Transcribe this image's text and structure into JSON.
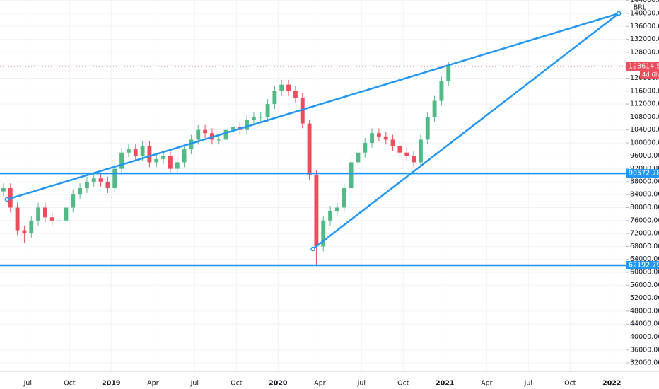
{
  "chart_data": {
    "type": "candlestick",
    "currency": "BRL",
    "up_color": "#53b987",
    "down_color": "#eb4d5c",
    "grid": true,
    "x": [
      "2018-05",
      "2018-05",
      "2018-06",
      "2018-06",
      "2018-07",
      "2018-07",
      "2018-08",
      "2018-08",
      "2018-09",
      "2018-09",
      "2018-10",
      "2018-10",
      "2018-11",
      "2018-11",
      "2018-12",
      "2018-12",
      "2019-01",
      "2019-01",
      "2019-02",
      "2019-02",
      "2019-03",
      "2019-03",
      "2019-04",
      "2019-04",
      "2019-05",
      "2019-05",
      "2019-06",
      "2019-06",
      "2019-07",
      "2019-07",
      "2019-08",
      "2019-08",
      "2019-09",
      "2019-09",
      "2019-10",
      "2019-10",
      "2019-11",
      "2019-11",
      "2019-12",
      "2019-12",
      "2020-01",
      "2020-01",
      "2020-02",
      "2020-02",
      "2020-03",
      "2020-03",
      "2020-04",
      "2020-04",
      "2020-05",
      "2020-05",
      "2020-06",
      "2020-06",
      "2020-07",
      "2020-07",
      "2020-08",
      "2020-08",
      "2020-09",
      "2020-09",
      "2020-10",
      "2020-10",
      "2020-11",
      "2020-11",
      "2020-12",
      "2020-12",
      "2021-01"
    ],
    "open": [
      85000,
      86000,
      80000,
      73000,
      72000,
      76000,
      80000,
      77000,
      76000,
      76000,
      80000,
      84000,
      86000,
      88000,
      89000,
      88000,
      86000,
      92000,
      97000,
      98000,
      96000,
      99000,
      94000,
      95000,
      96000,
      92000,
      94000,
      98000,
      101000,
      104000,
      103000,
      101000,
      101000,
      104000,
      105000,
      104000,
      107000,
      108000,
      108000,
      112000,
      116000,
      118000,
      116000,
      114000,
      106000,
      90000,
      68000,
      76000,
      79000,
      80000,
      86000,
      94000,
      97000,
      100000,
      103000,
      102000,
      101000,
      99000,
      97000,
      96000,
      94000,
      101000,
      108000,
      113000,
      119000
    ],
    "high": [
      87500,
      87500,
      81500,
      74500,
      77500,
      81500,
      81500,
      78500,
      77500,
      81500,
      85500,
      87500,
      89500,
      90500,
      90500,
      89500,
      93500,
      98500,
      99500,
      99500,
      100500,
      100500,
      96500,
      97500,
      97500,
      95500,
      99500,
      102500,
      105500,
      105500,
      104500,
      102500,
      105500,
      106500,
      106500,
      108500,
      109500,
      109500,
      113500,
      117500,
      119500,
      119500,
      117500,
      115500,
      107000,
      91500,
      77500,
      80500,
      81500,
      87500,
      95500,
      98500,
      101500,
      104500,
      104500,
      103500,
      102500,
      100500,
      98500,
      97500,
      102500,
      109500,
      114500,
      120500,
      125000
    ],
    "low": [
      83500,
      78500,
      71500,
      69000,
      70500,
      74500,
      75500,
      74500,
      74500,
      74500,
      78500,
      82500,
      84500,
      86500,
      86500,
      84500,
      84500,
      90500,
      95500,
      94500,
      94500,
      92500,
      92500,
      93500,
      90500,
      90500,
      92500,
      96500,
      99500,
      101500,
      99500,
      99500,
      99500,
      102500,
      102500,
      102500,
      105500,
      106500,
      106500,
      110500,
      114500,
      114500,
      112500,
      104500,
      88500,
      62200,
      66500,
      74500,
      77500,
      78500,
      84500,
      92500,
      95500,
      98500,
      100500,
      99500,
      97500,
      95500,
      94500,
      92500,
      92500,
      99500,
      106500,
      111500,
      117500
    ],
    "close": [
      86000,
      80000,
      73000,
      72000,
      76000,
      80000,
      77000,
      76000,
      76000,
      80000,
      84000,
      86000,
      88000,
      89000,
      88000,
      86000,
      92000,
      97000,
      98000,
      96000,
      99000,
      94000,
      95000,
      96000,
      92000,
      94000,
      98000,
      101000,
      104000,
      103000,
      101000,
      101000,
      104000,
      105000,
      104000,
      107000,
      108000,
      108000,
      112000,
      116000,
      118000,
      116000,
      114000,
      106000,
      90000,
      68000,
      76000,
      79000,
      80000,
      86000,
      94000,
      97000,
      100000,
      103000,
      102000,
      101000,
      99000,
      97000,
      96000,
      94000,
      101000,
      108000,
      113000,
      119000,
      123614.53
    ],
    "countdown": "4d 6h",
    "xlim": [
      "2018-05",
      "2022-02"
    ],
    "xticks": [
      {
        "value": "2018-07",
        "label": "Jul"
      },
      {
        "value": "2018-10",
        "label": "Oct"
      },
      {
        "value": "2019-01",
        "label": "2019"
      },
      {
        "value": "2019-04",
        "label": "Apr"
      },
      {
        "value": "2019-07",
        "label": "Jul"
      },
      {
        "value": "2019-10",
        "label": "Oct"
      },
      {
        "value": "2020-01",
        "label": "2020"
      },
      {
        "value": "2020-04",
        "label": "Apr"
      },
      {
        "value": "2020-07",
        "label": "Jul"
      },
      {
        "value": "2020-10",
        "label": "Oct"
      },
      {
        "value": "2021-01",
        "label": "2021"
      },
      {
        "value": "2021-04",
        "label": "Apr"
      },
      {
        "value": "2021-07",
        "label": "Jul"
      },
      {
        "value": "2021-10",
        "label": "Oct"
      },
      {
        "value": "2022-01",
        "label": "2022"
      }
    ],
    "ylim": [
      29400,
      144150
    ],
    "yticks": [
      {
        "value": 32000,
        "label": "32000.00"
      },
      {
        "value": 36000,
        "label": "36000.00"
      },
      {
        "value": 40000,
        "label": "40000.00"
      },
      {
        "value": 44000,
        "label": "44000.00"
      },
      {
        "value": 48000,
        "label": "48000.00"
      },
      {
        "value": 52000,
        "label": "52000.00"
      },
      {
        "value": 56000,
        "label": "56000.00"
      },
      {
        "value": 60000,
        "label": "60000.00"
      },
      {
        "value": 64000,
        "label": "64000.00"
      },
      {
        "value": 68000,
        "label": "68000.00"
      },
      {
        "value": 72000,
        "label": "72000.00"
      },
      {
        "value": 76000,
        "label": "76000.00"
      },
      {
        "value": 80000,
        "label": "80000.00"
      },
      {
        "value": 84000,
        "label": "84000.00"
      },
      {
        "value": 88000,
        "label": "88000.00"
      },
      {
        "value": 92000,
        "label": "92000.00"
      },
      {
        "value": 96000,
        "label": "96000.00"
      },
      {
        "value": 100000,
        "label": "100000.00"
      },
      {
        "value": 104000,
        "label": "104000.00"
      },
      {
        "value": 108000,
        "label": "108000.00"
      },
      {
        "value": 112000,
        "label": "112000.00"
      },
      {
        "value": 116000,
        "label": "116000.00"
      },
      {
        "value": 120000,
        "label": "120000.00"
      },
      {
        "value": 124000,
        "label": "124000.00"
      },
      {
        "value": 128000,
        "label": "128000.00"
      },
      {
        "value": 132000,
        "label": "132000.00"
      },
      {
        "value": 136000,
        "label": "136000.00"
      },
      {
        "value": 140000,
        "label": "140000.00"
      },
      {
        "value": 144000,
        "label": "144000.00"
      }
    ],
    "horizontal_lines": [
      {
        "value": 90572.78,
        "color": "#2196f3"
      },
      {
        "value": 62192.79,
        "color": "#2196f3"
      }
    ],
    "trend_lines": [
      {
        "color": "#2196f3",
        "points": [
          {
            "x": "2018-05",
            "y": 82500
          },
          {
            "x": "2022-01",
            "y": 140000
          }
        ]
      },
      {
        "color": "#2196f3",
        "points": [
          {
            "x": "2020-03",
            "y": 67200
          },
          {
            "x": "2022-01",
            "y": 140000
          }
        ]
      }
    ]
  }
}
